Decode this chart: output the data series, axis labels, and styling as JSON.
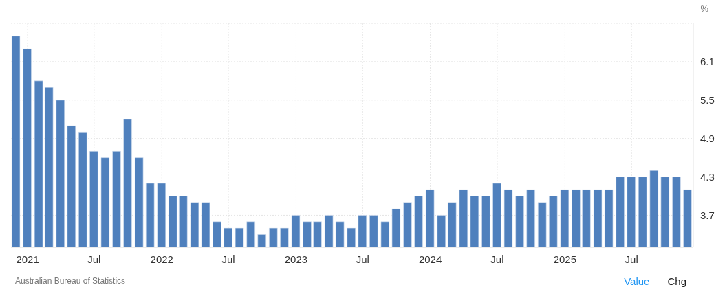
{
  "chart_data": {
    "type": "bar",
    "ylabel": "%",
    "annotations": [
      "Australian Bureau of Statistics",
      "Value",
      "Chg"
    ],
    "x": [
      "2020-12",
      "2021-01",
      "2021-02",
      "2021-03",
      "2021-04",
      "2021-05",
      "2021-06",
      "2021-07",
      "2021-08",
      "2021-09",
      "2021-10",
      "2021-11",
      "2021-12",
      "2022-01",
      "2022-02",
      "2022-03",
      "2022-04",
      "2022-05",
      "2022-06",
      "2022-07",
      "2022-08",
      "2022-09",
      "2022-10",
      "2022-11",
      "2022-12",
      "2023-01",
      "2023-02",
      "2023-03",
      "2023-04",
      "2023-05",
      "2023-06",
      "2023-07",
      "2023-08",
      "2023-09",
      "2023-10",
      "2023-11",
      "2023-12",
      "2024-01",
      "2024-02",
      "2024-03",
      "2024-04",
      "2024-05",
      "2024-06",
      "2024-07",
      "2024-08",
      "2024-09",
      "2024-10",
      "2024-11",
      "2024-12",
      "2025-01",
      "2025-02",
      "2025-03",
      "2025-04",
      "2025-05",
      "2025-06",
      "2025-07",
      "2025-08",
      "2025-09",
      "2025-10",
      "2025-11",
      "2025-12"
    ],
    "values": [
      6.5,
      6.3,
      5.8,
      5.7,
      5.5,
      5.1,
      5.0,
      4.7,
      4.6,
      4.7,
      5.2,
      4.6,
      4.2,
      4.2,
      4.0,
      4.0,
      3.9,
      3.9,
      3.6,
      3.5,
      3.5,
      3.6,
      3.4,
      3.5,
      3.5,
      3.7,
      3.6,
      3.6,
      3.7,
      3.6,
      3.5,
      3.7,
      3.7,
      3.6,
      3.8,
      3.9,
      4.0,
      4.1,
      3.7,
      3.9,
      4.1,
      4.0,
      4.0,
      4.2,
      4.1,
      4.0,
      4.1,
      3.9,
      4.0,
      4.1,
      4.1,
      4.1,
      4.1,
      4.1,
      4.3,
      4.3,
      4.3,
      4.4,
      4.3,
      4.3,
      4.1
    ],
    "color": "#4f80bd",
    "xlim": [
      "2020-11-17",
      "2025-12-16"
    ],
    "xticks": [
      {
        "value": "2021-01",
        "label": "2021"
      },
      {
        "value": "2021-07",
        "label": "Jul"
      },
      {
        "value": "2022-01",
        "label": "2022"
      },
      {
        "value": "2022-07",
        "label": "Jul"
      },
      {
        "value": "2023-01",
        "label": "2023"
      },
      {
        "value": "2023-07",
        "label": "Jul"
      },
      {
        "value": "2024-01",
        "label": "2024"
      },
      {
        "value": "2024-07",
        "label": "Jul"
      },
      {
        "value": "2025-01",
        "label": "2025"
      },
      {
        "value": "2025-07",
        "label": "Jul"
      }
    ],
    "ylim": [
      3.2,
      6.7
    ],
    "yticks": [
      3.7,
      4.3,
      4.9,
      5.5,
      6.1,
      {
        "value": 6.7,
        "label": null
      }
    ],
    "grid": true
  }
}
